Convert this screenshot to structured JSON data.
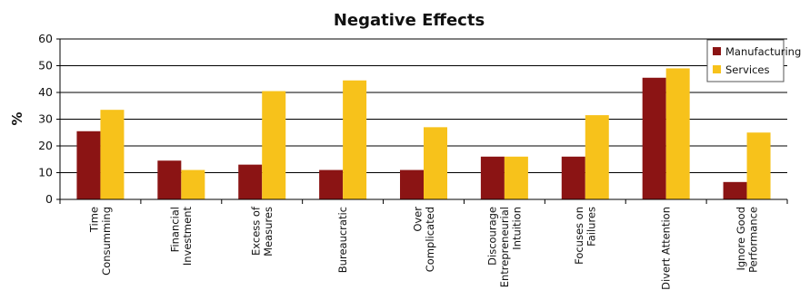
{
  "chart_data": {
    "type": "bar",
    "title": "Negative Effects",
    "xlabel": "",
    "ylabel": "%",
    "ylim": [
      0,
      60
    ],
    "yticks": [
      0,
      10,
      20,
      30,
      40,
      50,
      60
    ],
    "grid": true,
    "legend_position": "top-right",
    "categories": [
      [
        "Time",
        "Consumming"
      ],
      [
        "Financial",
        "Investment"
      ],
      [
        "Excess of",
        "Measures"
      ],
      [
        "Bureaucratic"
      ],
      [
        "Over",
        "Complicated"
      ],
      [
        "Discourage",
        "Entrepreneurial",
        "Intuition"
      ],
      [
        "Focuses on",
        "Failures"
      ],
      [
        "Divert Attention"
      ],
      [
        "Ignore Good",
        "Performance"
      ]
    ],
    "series": [
      {
        "name": "Manufacturing",
        "color": "#8B1414",
        "values": [
          25.5,
          14.5,
          13,
          11,
          11,
          16,
          16,
          45.5,
          6.5
        ]
      },
      {
        "name": "Services",
        "color": "#F7C21B",
        "values": [
          33.5,
          11,
          40.5,
          44.5,
          27,
          16,
          31.5,
          49,
          25
        ]
      }
    ]
  }
}
